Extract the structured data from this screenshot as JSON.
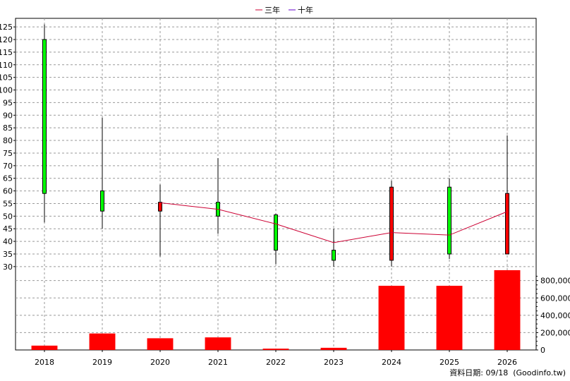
{
  "legend": [
    {
      "label": "三年",
      "color": "#cc0033"
    },
    {
      "label": "十年",
      "color": "#6600cc"
    }
  ],
  "footer": {
    "date_label": "資料日期:",
    "date_value": "09/18",
    "source": "(Goodinfo.tw)"
  },
  "chart_data": [
    {
      "type": "candlestick",
      "categories": [
        "2018",
        "2019",
        "2020",
        "2021",
        "2022",
        "2023",
        "2024",
        "2025",
        "2026"
      ],
      "ylim": [
        28,
        127
      ],
      "yticks": [
        30,
        35,
        40,
        45,
        50,
        55,
        60,
        65,
        70,
        75,
        80,
        85,
        90,
        95,
        100,
        105,
        110,
        115,
        120,
        125
      ],
      "grid": true,
      "legend_position": "top",
      "candles": [
        {
          "x": "2018",
          "open": 59,
          "close": 120,
          "high": 126,
          "low": 47.5,
          "color": "#00ff00"
        },
        {
          "x": "2019",
          "open": 52,
          "close": 60,
          "high": 89,
          "low": 45,
          "color": "#00ff00"
        },
        {
          "x": "2020",
          "open": 55.5,
          "close": 52,
          "high": 62.5,
          "low": 34,
          "color": "#ff0000"
        },
        {
          "x": "2021",
          "open": 50,
          "close": 55.5,
          "high": 73,
          "low": 43,
          "color": "#00ff00"
        },
        {
          "x": "2022",
          "open": 36.5,
          "close": 50.5,
          "high": 51,
          "low": 31,
          "color": "#00ff00"
        },
        {
          "x": "2023",
          "open": 32.5,
          "close": 36.5,
          "high": 45,
          "low": 30,
          "color": "#00ff00"
        },
        {
          "x": "2024",
          "open": 61.5,
          "close": 32.5,
          "high": 64,
          "low": 30,
          "color": "#ff0000"
        },
        {
          "x": "2025",
          "open": 35,
          "close": 61.5,
          "high": 65,
          "low": 33,
          "color": "#00ff00"
        },
        {
          "x": "2026",
          "open": 59,
          "close": 35,
          "high": 82,
          "low": 35,
          "color": "#ff0000"
        }
      ],
      "series": [
        {
          "name": "三年",
          "x": [
            "2020",
            "2021",
            "2022",
            "2023",
            "2024",
            "2025",
            "2026"
          ],
          "values": [
            55.3,
            52.7,
            46.9,
            39.5,
            43.5,
            42.5,
            51.8
          ],
          "color": "#cc0033"
        }
      ]
    },
    {
      "type": "bar",
      "categories": [
        "2018",
        "2019",
        "2020",
        "2021",
        "2022",
        "2023",
        "2024",
        "2025",
        "2026"
      ],
      "values": [
        50000,
        190000,
        135000,
        145000,
        15000,
        25000,
        740000,
        740000,
        920000
      ],
      "ylim": [
        0,
        960000
      ],
      "yticks": [
        0,
        200000,
        400000,
        600000,
        800000
      ],
      "ytick_labels": [
        "0",
        "200,000",
        "400,000",
        "600,000",
        "800,000"
      ],
      "color": "#ff0000"
    }
  ]
}
